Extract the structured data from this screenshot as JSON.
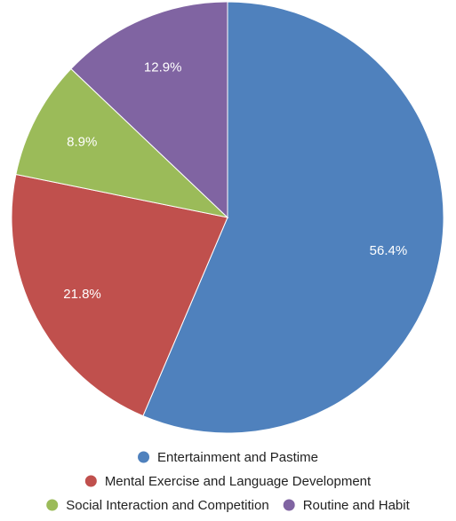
{
  "chart_data": {
    "type": "pie",
    "categories": [
      "Entertainment and Pastime",
      "Mental Exercise and Language Development",
      "Social Interaction and Competition",
      "Routine and Habit"
    ],
    "values": [
      56.4,
      21.8,
      8.9,
      12.9
    ],
    "labels": [
      "56.4%",
      "21.8%",
      "8.9%",
      "12.9%"
    ],
    "colors": [
      "#4f81bd",
      "#c0504d",
      "#9bbb59",
      "#8064a2"
    ],
    "start_angle_deg": 0,
    "direction": "clockwise",
    "legend_position": "bottom",
    "title": ""
  }
}
